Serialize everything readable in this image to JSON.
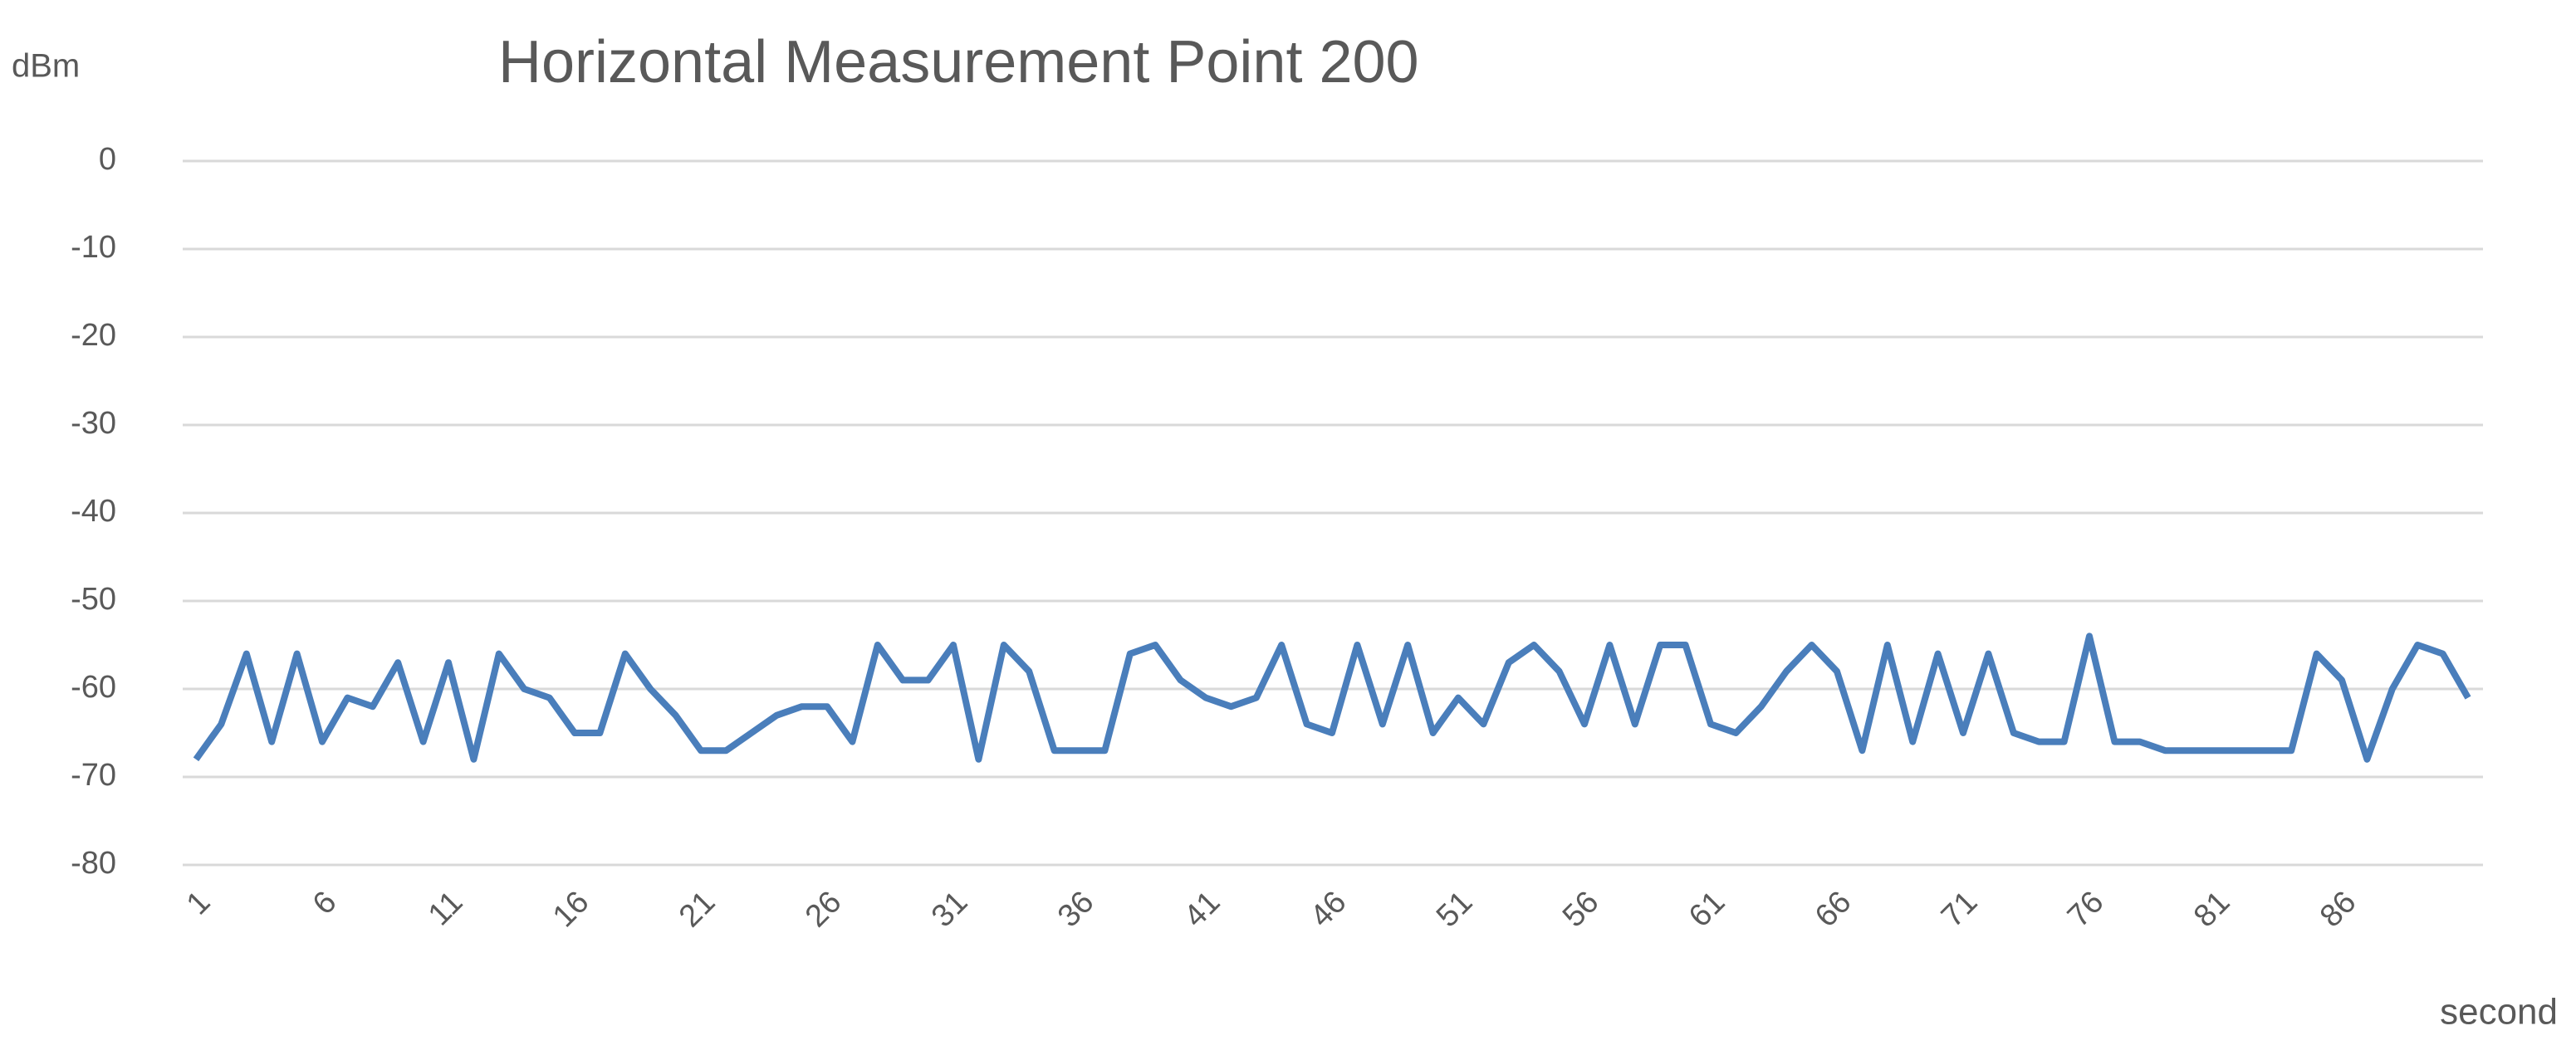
{
  "chart_data": {
    "type": "line",
    "title": "Horizontal Measurement Point 200",
    "y_label": "dBm",
    "x_label": "second",
    "x": [
      1,
      2,
      3,
      4,
      5,
      6,
      7,
      8,
      9,
      10,
      11,
      12,
      13,
      14,
      15,
      16,
      17,
      18,
      19,
      20,
      21,
      22,
      23,
      24,
      25,
      26,
      27,
      28,
      29,
      30,
      31,
      32,
      33,
      34,
      35,
      36,
      37,
      38,
      39,
      40,
      41,
      42,
      43,
      44,
      45,
      46,
      47,
      48,
      49,
      50,
      51,
      52,
      53,
      54,
      55,
      56,
      57,
      58,
      59,
      60,
      61,
      62,
      63,
      64,
      65,
      66,
      67,
      68,
      69,
      70,
      71,
      72,
      73,
      74,
      75,
      76,
      77,
      78,
      79,
      80,
      81,
      82,
      83,
      84,
      85,
      86,
      87,
      88,
      89,
      90,
      91
    ],
    "series": [
      {
        "name": "Horizontal Measurement Point 200",
        "color": "#4a7ebb",
        "values": [
          -68,
          -64,
          -56,
          -66,
          -56,
          -66,
          -61,
          -62,
          -57,
          -66,
          -57,
          -68,
          -56,
          -60,
          -61,
          -65,
          -65,
          -56,
          -60,
          -63,
          -67,
          -67,
          -65,
          -63,
          -62,
          -62,
          -66,
          -55,
          -59,
          -59,
          -55,
          -68,
          -55,
          -58,
          -67,
          -67,
          -67,
          -56,
          -55,
          -59,
          -61,
          -62,
          -61,
          -55,
          -64,
          -65,
          -55,
          -64,
          -55,
          -65,
          -61,
          -64,
          -57,
          -55,
          -58,
          -64,
          -55,
          -64,
          -55,
          -55,
          -64,
          -65,
          -62,
          -58,
          -55,
          -58,
          -67,
          -55,
          -66,
          -56,
          -65,
          -56,
          -65,
          -66,
          -66,
          -54,
          -66,
          -66,
          -67,
          -67,
          -67,
          -67,
          -67,
          -67,
          -56,
          -59,
          -68,
          -60,
          -55,
          -56,
          -61
        ]
      }
    ],
    "xlim": [
      1,
      91
    ],
    "xticks": [
      1,
      6,
      11,
      16,
      21,
      26,
      31,
      36,
      41,
      46,
      51,
      56,
      61,
      66,
      71,
      76,
      81,
      86
    ],
    "ylim": [
      -80,
      0
    ],
    "yticks": [
      0,
      -10,
      -20,
      -30,
      -40,
      -50,
      -60,
      -70,
      -80
    ],
    "grid": true
  }
}
